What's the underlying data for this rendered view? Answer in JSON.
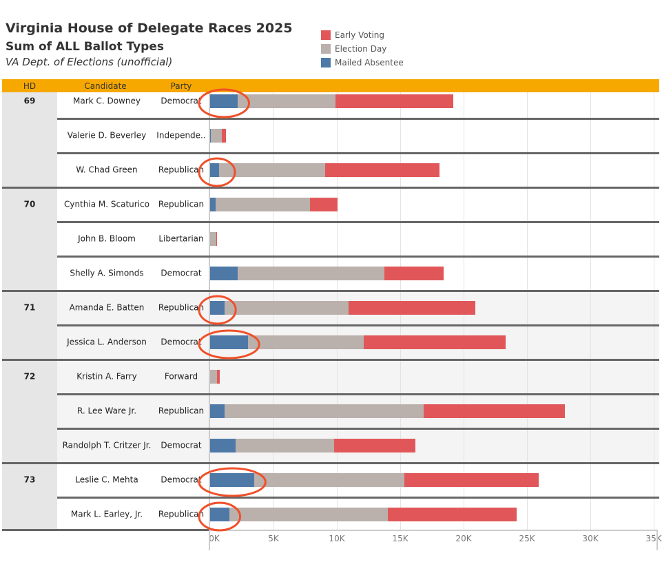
{
  "title": "Virginia House of Delegate Races 2025",
  "subtitle": "Sum of ALL Ballot Types",
  "source": "VA Dept. of Elections (unofficial)",
  "headers": {
    "hd": "HD",
    "candidate": "Candidate",
    "party": "Party"
  },
  "colors": {
    "early": "#e15759",
    "eday": "#bab0ac",
    "mailed": "#4e79a7",
    "header": "#f7a800",
    "annotation": "#f0502a"
  },
  "chart_data": {
    "type": "bar",
    "orientation": "horizontal-stacked",
    "legend": [
      "Early Voting",
      "Election Day",
      "Mailed Absentee"
    ],
    "legend_placement": "top",
    "xlim": [
      0,
      35000
    ],
    "ticks": [
      "0K",
      "5K",
      "10K",
      "15K",
      "20K",
      "25K",
      "30K",
      "35K"
    ],
    "tick_values": [
      0,
      5000,
      10000,
      15000,
      20000,
      25000,
      30000,
      35000
    ],
    "rows": [
      {
        "hd": "69",
        "candidate": "Mark C. Downey",
        "party": "Democrat",
        "mailed": 2200,
        "eday": 7700,
        "early": 9300,
        "circled": true
      },
      {
        "hd": "",
        "candidate": "Valerie D. Beverley",
        "party": "Independe..",
        "mailed": 50,
        "eday": 850,
        "early": 350,
        "circled": false
      },
      {
        "hd": "",
        "candidate": "W. Chad Green",
        "party": "Republican",
        "mailed": 700,
        "eday": 8400,
        "early": 9000,
        "circled": true
      },
      {
        "hd": "70",
        "candidate": "Cynthia M. Scaturico",
        "party": "Republican",
        "mailed": 450,
        "eday": 7450,
        "early": 2150,
        "circled": false
      },
      {
        "hd": "",
        "candidate": "John B. Bloom",
        "party": "Libertarian",
        "mailed": 20,
        "eday": 450,
        "early": 50,
        "circled": false
      },
      {
        "hd": "",
        "candidate": "Shelly A. Simonds",
        "party": "Democrat",
        "mailed": 2200,
        "eday": 11550,
        "early": 4650,
        "circled": false
      },
      {
        "hd": "71",
        "candidate": "Amanda E. Batten",
        "party": "Republican",
        "mailed": 1150,
        "eday": 9750,
        "early": 10000,
        "circled": true
      },
      {
        "hd": "",
        "candidate": "Jessica L. Anderson",
        "party": "Democrat",
        "mailed": 3000,
        "eday": 9100,
        "early": 11200,
        "circled": true
      },
      {
        "hd": "72",
        "candidate": "Kristin A. Farry",
        "party": "Forward",
        "mailed": 20,
        "eday": 530,
        "early": 200,
        "circled": false
      },
      {
        "hd": "",
        "candidate": "R. Lee Ware Jr.",
        "party": "Republican",
        "mailed": 1150,
        "eday": 15700,
        "early": 11150,
        "circled": false
      },
      {
        "hd": "",
        "candidate": "Randolph T. Critzer Jr.",
        "party": "Democrat",
        "mailed": 2000,
        "eday": 7800,
        "early": 6400,
        "circled": false
      },
      {
        "hd": "73",
        "candidate": "Leslie C. Mehta",
        "party": "Democrat",
        "mailed": 3500,
        "eday": 11800,
        "early": 10600,
        "circled": true
      },
      {
        "hd": "",
        "candidate": "Mark L. Earley, Jr.",
        "party": "Republican",
        "mailed": 1500,
        "eday": 12500,
        "early": 10200,
        "circled": true
      }
    ]
  }
}
